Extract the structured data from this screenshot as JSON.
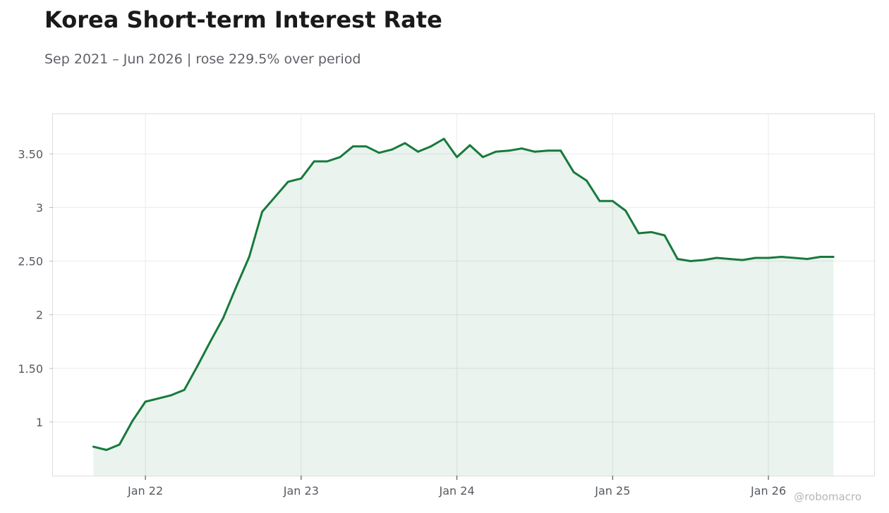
{
  "header": {
    "title": "Korea Short-term Interest Rate",
    "subtitle": "Sep 2021 – Jun 2026 | rose 229.5% over period"
  },
  "watermark": "@robomacro",
  "colors": {
    "line": "#177a3c",
    "fill": "#177a3c",
    "grid": "#ebebeb",
    "frame": "#dddddd",
    "text": "#555a60"
  },
  "chart_data": {
    "type": "area",
    "title": "Korea Short-term Interest Rate",
    "subtitle": "Sep 2021 – Jun 2026 | rose 229.5% over period",
    "xlabel": "",
    "ylabel": "",
    "x_start": "2021-09",
    "x_end": "2026-06",
    "x": [
      "2021-09",
      "2021-10",
      "2021-11",
      "2021-12",
      "2022-01",
      "2022-02",
      "2022-03",
      "2022-04",
      "2022-05",
      "2022-06",
      "2022-07",
      "2022-08",
      "2022-09",
      "2022-10",
      "2022-11",
      "2022-12",
      "2023-01",
      "2023-02",
      "2023-03",
      "2023-04",
      "2023-05",
      "2023-06",
      "2023-07",
      "2023-08",
      "2023-09",
      "2023-10",
      "2023-11",
      "2023-12",
      "2024-01",
      "2024-02",
      "2024-03",
      "2024-04",
      "2024-05",
      "2024-06",
      "2024-07",
      "2024-08",
      "2024-09",
      "2024-10",
      "2024-11",
      "2024-12",
      "2025-01",
      "2025-02",
      "2025-03",
      "2025-04",
      "2025-05",
      "2025-06",
      "2025-07",
      "2025-08",
      "2025-09",
      "2025-10",
      "2025-11",
      "2025-12",
      "2026-01",
      "2026-02",
      "2026-03",
      "2026-04",
      "2026-05",
      "2026-06"
    ],
    "series": [
      {
        "values": [
          0.77,
          0.74,
          0.79,
          1.01,
          1.19,
          1.22,
          1.25,
          1.3,
          1.52,
          1.75,
          1.97,
          2.26,
          2.54,
          2.96,
          3.1,
          3.24,
          3.27,
          3.43,
          3.43,
          3.47,
          3.57,
          3.57,
          3.51,
          3.54,
          3.6,
          3.52,
          3.57,
          3.64,
          3.47,
          3.58,
          3.47,
          3.52,
          3.53,
          3.55,
          3.52,
          3.53,
          3.53,
          3.33,
          3.25,
          3.06,
          3.06,
          2.97,
          2.76,
          2.77,
          2.74,
          2.52,
          2.5,
          2.51,
          2.53,
          2.52,
          2.51,
          2.53,
          2.53,
          2.54,
          2.53,
          2.52,
          2.54,
          2.54
        ]
      }
    ],
    "x_ticks": [
      {
        "label": "Jan 22",
        "date": "2022-01"
      },
      {
        "label": "Jan 23",
        "date": "2023-01"
      },
      {
        "label": "Jan 24",
        "date": "2024-01"
      },
      {
        "label": "Jan 25",
        "date": "2025-01"
      },
      {
        "label": "Jan 26",
        "date": "2026-01"
      }
    ],
    "y_ticks": [
      {
        "label": "1",
        "value": 1
      },
      {
        "label": "1.50",
        "value": 1.5
      },
      {
        "label": "2",
        "value": 2
      },
      {
        "label": "2.50",
        "value": 2.5
      },
      {
        "label": "3",
        "value": 3
      },
      {
        "label": "3.50",
        "value": 3.5
      }
    ],
    "xlim": [
      "2021-06",
      "2026-09"
    ],
    "ylim": [
      0.5,
      3.87
    ],
    "grid": true,
    "legend": "none"
  }
}
